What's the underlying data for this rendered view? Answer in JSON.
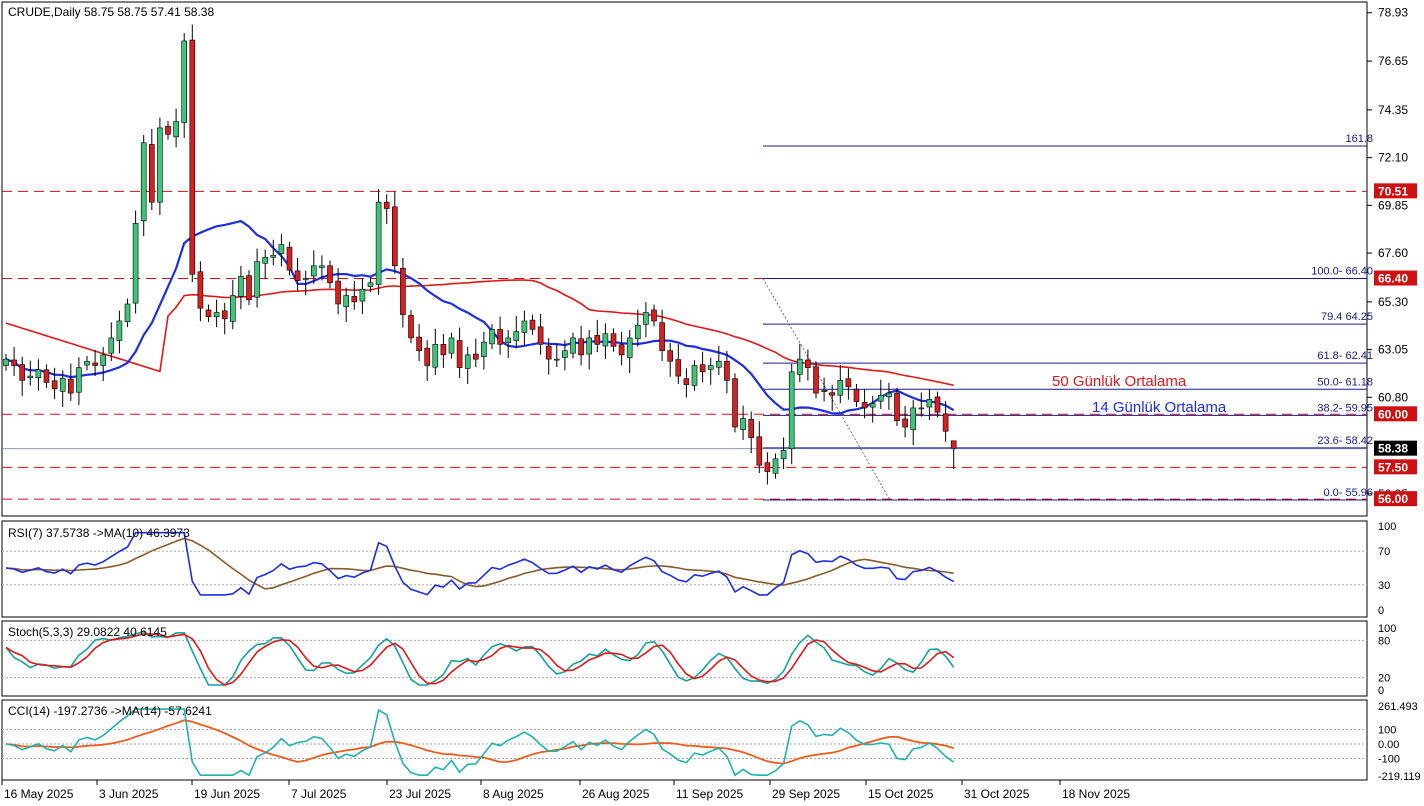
{
  "main_header": "CRUDE,Daily  58.75 58.75 57.41 58.38",
  "price_axis": {
    "ticks": [
      "78.93",
      "76.65",
      "74.35",
      "72.10",
      "69.85",
      "67.60",
      "65.30",
      "63.05",
      "60.80",
      "56.25"
    ],
    "tags": [
      {
        "label": "70.51",
        "value": 70.51,
        "color": "#d01010"
      },
      {
        "label": "66.40",
        "value": 66.4,
        "color": "#d01010"
      },
      {
        "label": "60.00",
        "value": 60.0,
        "color": "#d01010"
      },
      {
        "label": "58.38",
        "value": 58.38,
        "color": "#000000"
      },
      {
        "label": "57.50",
        "value": 57.5,
        "color": "#d01010"
      },
      {
        "label": "56.00",
        "value": 56.0,
        "color": "#d01010"
      }
    ]
  },
  "levels": {
    "support_resistance": [
      70.51,
      66.4,
      60.0,
      57.5,
      56.0
    ],
    "fibonacci": [
      {
        "label": "161.8",
        "value": 72.65
      },
      {
        "label": "100.0- 66.40",
        "value": 66.4
      },
      {
        "label": "79.4 64.25",
        "value": 64.25
      },
      {
        "label": "61.8- 62.41",
        "value": 62.41
      },
      {
        "label": "50.0- 61.18",
        "value": 61.18
      },
      {
        "label": "38.2- 59.95",
        "value": 59.95
      },
      {
        "label": "23.6- 58.42",
        "value": 58.42
      },
      {
        "label": "0.0- 55.96",
        "value": 55.96
      }
    ]
  },
  "annotations": {
    "ma50": "50 Günlük Ortalama",
    "ma14": "14 Günlük Ortalama"
  },
  "rsi": {
    "header": "RSI(7) 37.5738  ->MA(10) 46.3973",
    "ticks": [
      "100",
      "70",
      "30",
      "0"
    ],
    "levels": [
      70,
      30
    ]
  },
  "stoch": {
    "header": "Stoch(5,3,3) 29.0822 40.6145",
    "ticks": [
      "100",
      "80",
      "20",
      "0"
    ],
    "levels": [
      80,
      20
    ]
  },
  "cci": {
    "header": "CCI(14) -197.2736  ->MA(14) -57.6241",
    "ticks": [
      "261.493",
      "100",
      "0.00",
      "-100",
      "-219.119"
    ],
    "levels": [
      100,
      0,
      -100
    ]
  },
  "dates": [
    "16 May 2025",
    "3 Jun 2025",
    "19 Jun 2025",
    "7 Jul 2025",
    "23 Jul 2025",
    "8 Aug 2025",
    "26 Aug 2025",
    "11 Sep 2025",
    "29 Sep 2025",
    "15 Oct 2025",
    "31 Oct 2025",
    "18 Nov 2025"
  ],
  "colors": {
    "up": "#3fc47a",
    "down": "#d42020",
    "ma14": "#1c2ee0",
    "ma50": "#e01818",
    "rsi_line": "#1c2ee0",
    "rsi_ma": "#8a5a2a",
    "stoch_k": "#16a0a0",
    "stoch_d": "#e01818",
    "cci_line": "#20b0b0",
    "cci_ma": "#f05a1a",
    "fib": "#1a1a8c",
    "level": "#d01010"
  },
  "chart_data": {
    "type": "candlestick",
    "symbol": "CRUDE",
    "timeframe": "Daily",
    "last_ohlc": {
      "open": 58.75,
      "high": 58.75,
      "low": 57.41,
      "close": 58.38
    },
    "ylim": [
      55.3,
      79.2
    ],
    "closes": [
      62.6,
      62.3,
      61.6,
      61.8,
      62.1,
      61.5,
      61.2,
      61.7,
      61.0,
      62.2,
      62.5,
      62.3,
      62.8,
      63.6,
      64.4,
      65.2,
      69.0,
      72.8,
      70.0,
      73.5,
      73.2,
      73.8,
      77.6,
      66.6,
      65.0,
      64.6,
      64.8,
      64.5,
      65.6,
      66.5,
      65.4,
      67.2,
      67.4,
      67.5,
      68.0,
      66.8,
      66.3,
      66.4,
      67.0,
      67.0,
      66.2,
      65.2,
      65.6,
      65.3,
      65.9,
      66.2,
      70.0,
      69.7,
      67.0,
      64.7,
      63.6,
      63.0,
      62.3,
      63.3,
      62.8,
      63.6,
      62.2,
      62.8,
      62.6,
      63.4,
      64.0,
      63.3,
      63.6,
      63.9,
      64.4,
      64.0,
      63.3,
      62.6,
      62.6,
      63.0,
      63.6,
      62.8,
      63.6,
      63.3,
      63.8,
      63.2,
      62.8,
      63.6,
      64.2,
      64.8,
      64.4,
      63.0,
      62.5,
      61.8,
      61.4,
      62.3,
      62.0,
      62.3,
      62.5,
      61.6,
      59.4,
      59.8,
      58.9,
      57.6,
      57.3,
      57.9,
      58.3,
      62.0,
      62.6,
      62.2,
      61.0,
      61.1,
      60.9,
      61.6,
      61.3,
      60.6,
      60.3,
      60.5,
      60.9,
      61.0,
      59.7,
      59.4,
      60.3,
      60.3,
      60.7,
      60.1,
      59.2,
      58.4
    ]
  }
}
